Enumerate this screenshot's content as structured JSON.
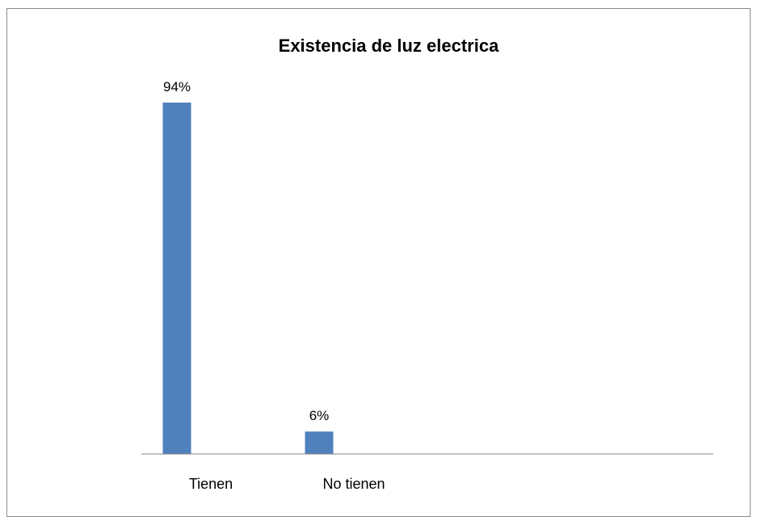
{
  "chart_data": {
    "type": "bar",
    "title": "Existencia de luz electrica",
    "categories": [
      "Tienen",
      "No tienen"
    ],
    "values": [
      94,
      6
    ],
    "value_labels": [
      "94%",
      "6%"
    ],
    "unit": "%",
    "ylim": [
      0,
      100
    ],
    "grid": false,
    "legend": "none",
    "bar_color": "#4f81bd",
    "axis_color": "#868686"
  }
}
